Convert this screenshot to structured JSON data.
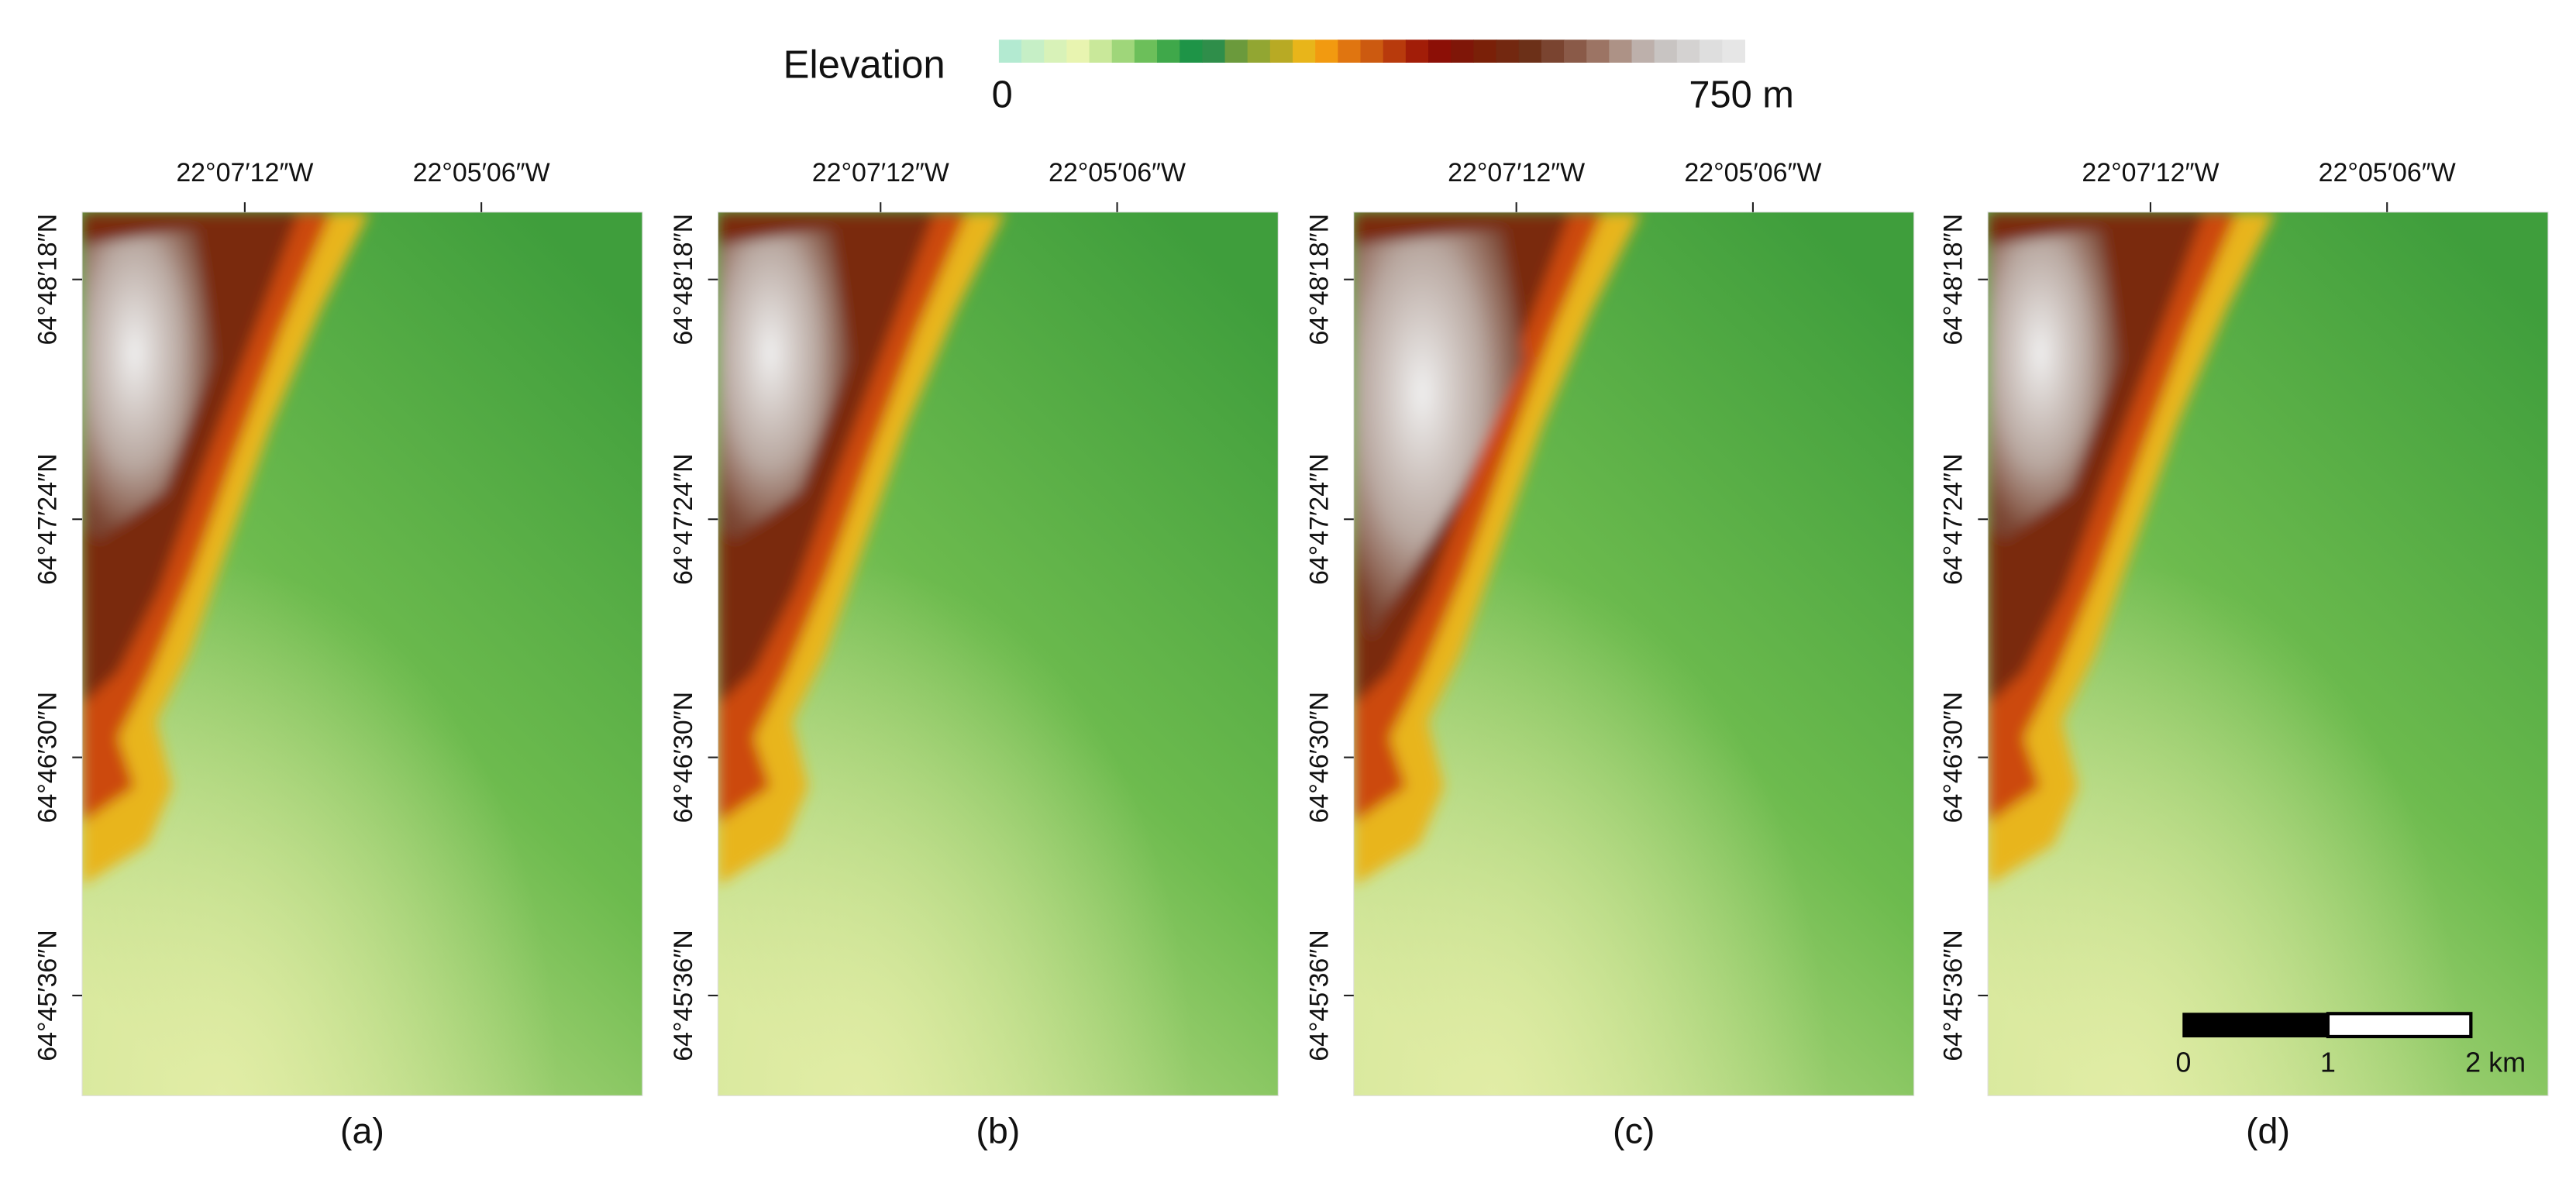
{
  "legend": {
    "title": "Elevation",
    "min_label": "0",
    "max_label": "750 m",
    "colors": [
      "#b3ead1",
      "#c6efc6",
      "#d8f2b8",
      "#e8f4b0",
      "#c9e89a",
      "#9fd67a",
      "#6cbf5a",
      "#3fa84a",
      "#1e9447",
      "#2f8e4a",
      "#6b9a3c",
      "#92a632",
      "#b8aa24",
      "#e8b51a",
      "#f29a10",
      "#e07510",
      "#cc5a10",
      "#b83a0c",
      "#a21d08",
      "#8c0f06",
      "#7f1608",
      "#7a2008",
      "#732810",
      "#6c3018",
      "#7a4430",
      "#8a5a48",
      "#9c7464",
      "#ad9286",
      "#bdb0ab",
      "#c8c4c2",
      "#d4d2d1",
      "#dedede",
      "#e6e6e6"
    ]
  },
  "x_tick_labels": [
    "22°07′12″W",
    "22°05′06″W"
  ],
  "y_tick_labels": [
    "64°48′18″N",
    "64°47′24″N",
    "64°46′30″N",
    "64°45′36″N"
  ],
  "panels": [
    {
      "label": "(a)"
    },
    {
      "label": "(b)"
    },
    {
      "label": "(c)"
    },
    {
      "label": "(d)"
    }
  ],
  "scale_bar": {
    "labels": [
      "0",
      "1",
      "2 km"
    ]
  }
}
